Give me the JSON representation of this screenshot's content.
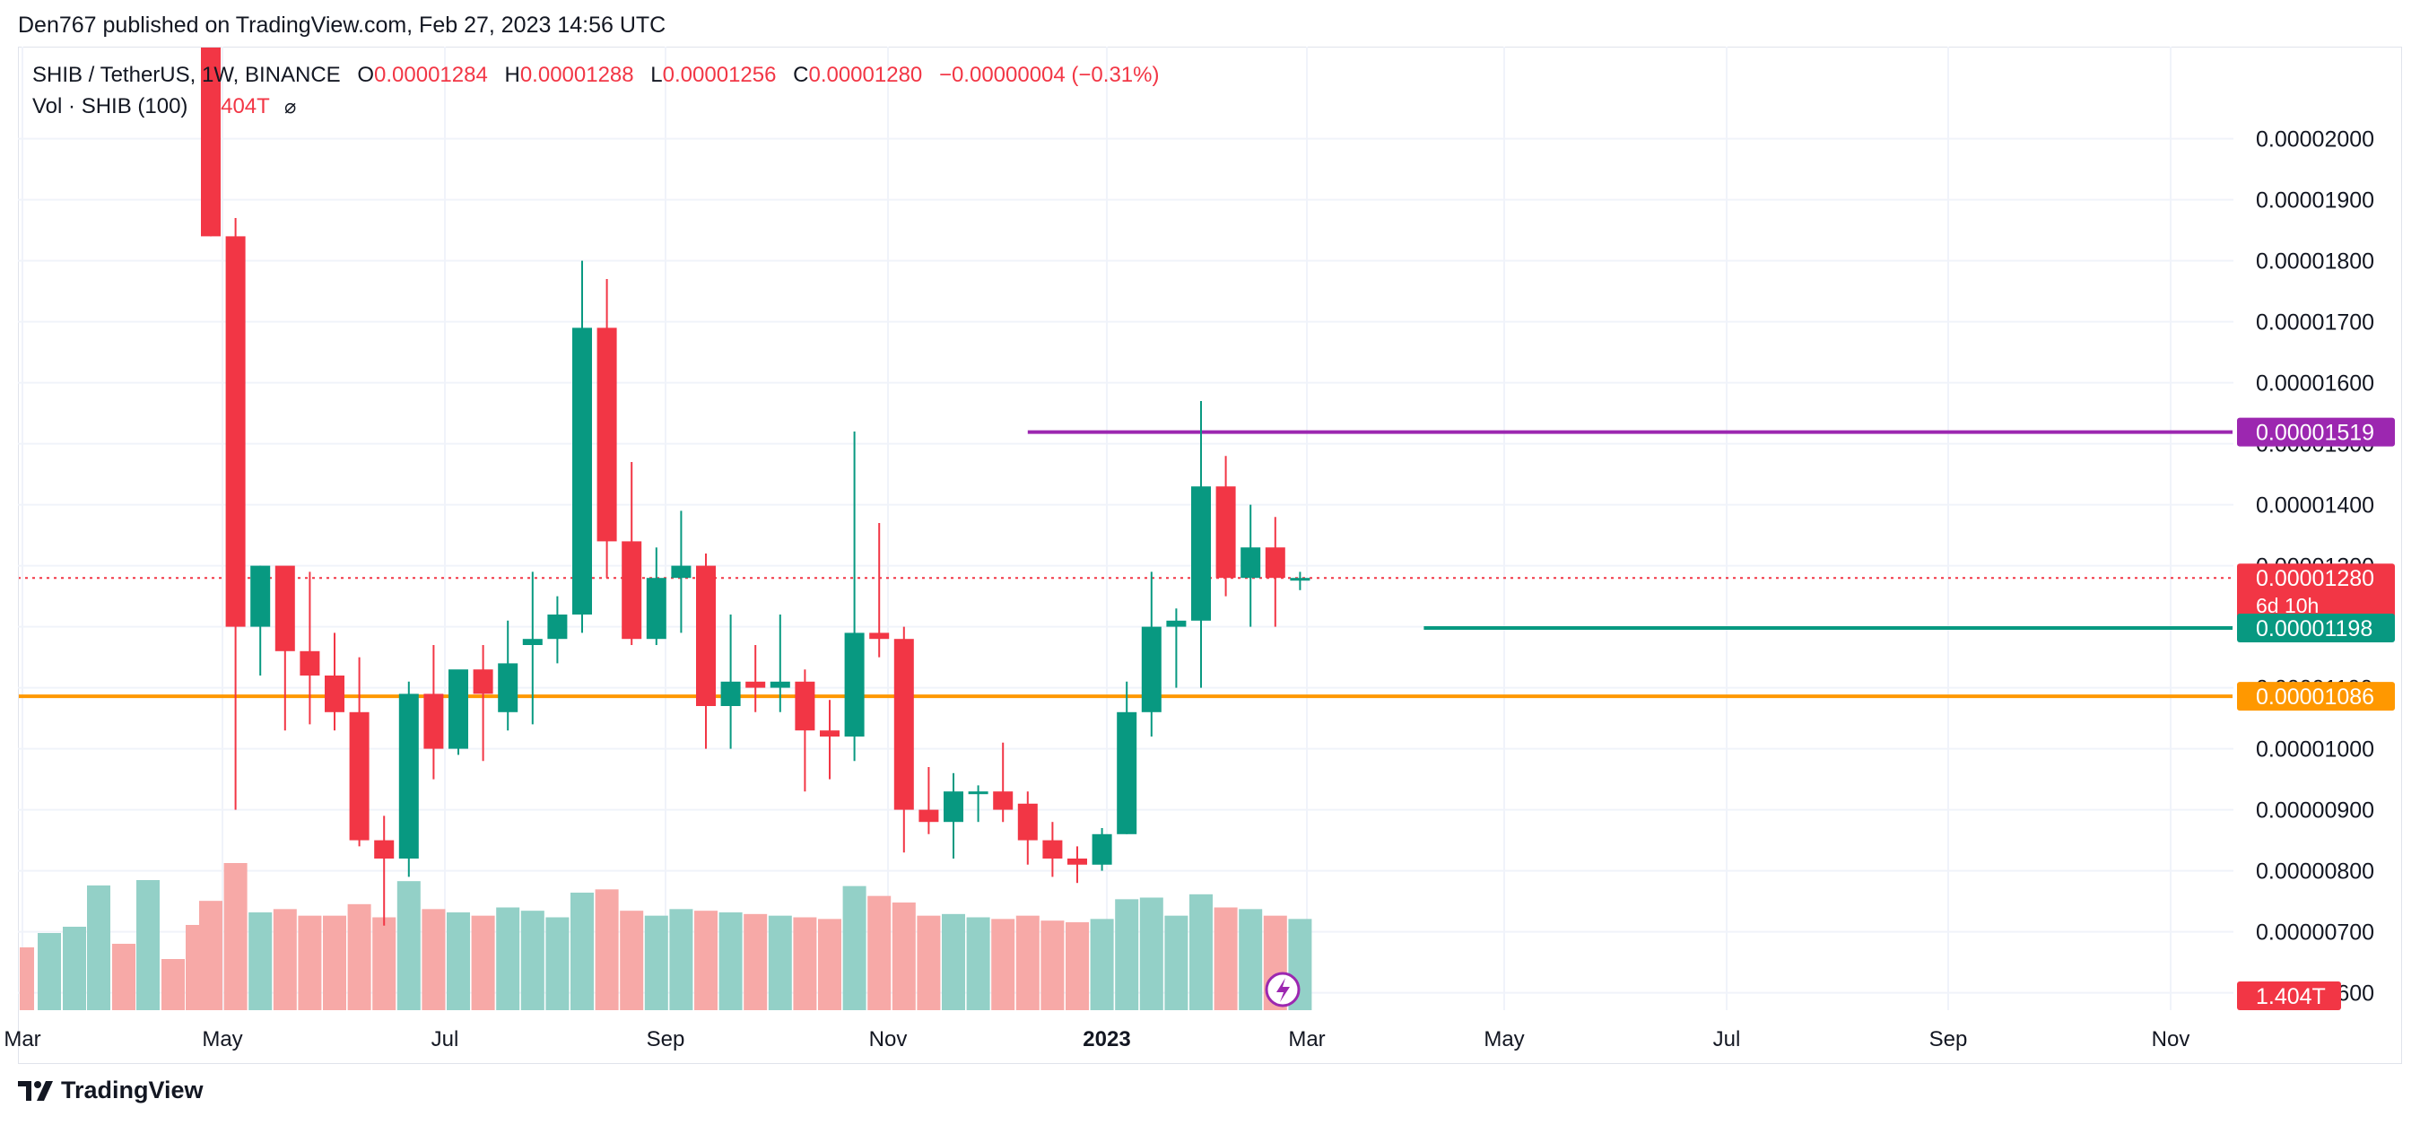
{
  "publisher": "Den767 published on TradingView.com, Feb 27, 2023 14:56 UTC",
  "legend": {
    "symbol": "SHIB / TetherUS, 1W, BINANCE",
    "o_label": "O",
    "o_value": "0.00001284",
    "h_label": "H",
    "h_value": "0.00001288",
    "l_label": "L",
    "l_value": "0.00001256",
    "c_label": "C",
    "c_value": "0.00001280",
    "change": "−0.00000004 (−0.31%)",
    "volume_label": "Vol · SHIB (100)",
    "volume_value": "1.404T",
    "volume_icon": "hidden-eye-icon"
  },
  "footer": {
    "brand": "TradingView",
    "logo": "tradingview-logo-icon"
  },
  "colors": {
    "up": "#089981",
    "down": "#f23645",
    "vol_up": "#93d0c7",
    "vol_down": "#f7a9a7",
    "resistance": "#9c27b0",
    "support": "#089981",
    "level": "#ff9800",
    "grid": "#f0f3fa"
  },
  "chart_data": {
    "type": "candlestick",
    "title": "SHIB / TetherUS, 1W, BINANCE",
    "ylim": [
      5.7e-06,
      2.1e-05
    ],
    "y_ticks": [
      "0.00002000",
      "0.00001900",
      "0.00001800",
      "0.00001700",
      "0.00001600",
      "0.00001500",
      "0.00001400",
      "0.00001300",
      "0.00001200",
      "0.00001100",
      "0.00001000",
      "0.00000900",
      "0.00000800",
      "0.00000700",
      "0.00000600"
    ],
    "x_ticks": [
      "Mar",
      "May",
      "Jul",
      "Sep",
      "Nov",
      "2023",
      "Mar",
      "May",
      "Jul",
      "Sep",
      "Nov"
    ],
    "price_labels": [
      {
        "value": "0.00001519",
        "color": "#9c27b0"
      },
      {
        "value": "0.00001280",
        "sub": "6d 10h",
        "color": "#f23645"
      },
      {
        "value": "0.00001198",
        "color": "#089981"
      },
      {
        "value": "0.00001086",
        "color": "#ff9800"
      }
    ],
    "volume_label": "1.404T",
    "horizontal_lines": [
      {
        "name": "resistance",
        "value": 1.519e-05,
        "start_index": 33
      },
      {
        "name": "support",
        "value": 1.198e-05,
        "start_index": 49
      },
      {
        "name": "level",
        "value": 1.086e-05,
        "start_index": 0
      },
      {
        "name": "current",
        "value": 1.28e-05,
        "start_index": 0
      }
    ],
    "candles": [
      {
        "o": 2.25e-05,
        "h": 2.6e-05,
        "l": 1.84e-05,
        "c": 1.84e-05,
        "v": 0.67
      },
      {
        "o": 1.84e-05,
        "h": 1.87e-05,
        "l": 9e-06,
        "c": 1.2e-05,
        "v": 0.9
      },
      {
        "o": 1.2e-05,
        "h": 1.3e-05,
        "l": 1.12e-05,
        "c": 1.3e-05,
        "v": 0.6
      },
      {
        "o": 1.3e-05,
        "h": 1.29e-05,
        "l": 1.03e-05,
        "c": 1.16e-05,
        "v": 0.62
      },
      {
        "o": 1.16e-05,
        "h": 1.29e-05,
        "l": 1.04e-05,
        "c": 1.12e-05,
        "v": 0.58
      },
      {
        "o": 1.12e-05,
        "h": 1.19e-05,
        "l": 1.03e-05,
        "c": 1.06e-05,
        "v": 0.58
      },
      {
        "o": 1.06e-05,
        "h": 1.15e-05,
        "l": 8.4e-06,
        "c": 8.5e-06,
        "v": 0.65
      },
      {
        "o": 8.5e-06,
        "h": 8.9e-06,
        "l": 7.1e-06,
        "c": 8.2e-06,
        "v": 0.57
      },
      {
        "o": 8.2e-06,
        "h": 1.11e-05,
        "l": 7.9e-06,
        "c": 1.09e-05,
        "v": 0.79
      },
      {
        "o": 1.09e-05,
        "h": 1.17e-05,
        "l": 9.5e-06,
        "c": 1e-05,
        "v": 0.62
      },
      {
        "o": 1e-05,
        "h": 1.12e-05,
        "l": 9.9e-06,
        "c": 1.13e-05,
        "v": 0.6
      },
      {
        "o": 1.13e-05,
        "h": 1.17e-05,
        "l": 9.8e-06,
        "c": 1.09e-05,
        "v": 0.58
      },
      {
        "o": 1.06e-05,
        "h": 1.21e-05,
        "l": 1.03e-05,
        "c": 1.14e-05,
        "v": 0.63
      },
      {
        "o": 1.17e-05,
        "h": 1.29e-05,
        "l": 1.04e-05,
        "c": 1.18e-05,
        "v": 0.61
      },
      {
        "o": 1.18e-05,
        "h": 1.25e-05,
        "l": 1.14e-05,
        "c": 1.22e-05,
        "v": 0.57
      },
      {
        "o": 1.22e-05,
        "h": 1.8e-05,
        "l": 1.19e-05,
        "c": 1.69e-05,
        "v": 0.72
      },
      {
        "o": 1.69e-05,
        "h": 1.77e-05,
        "l": 1.28e-05,
        "c": 1.34e-05,
        "v": 0.74
      },
      {
        "o": 1.34e-05,
        "h": 1.47e-05,
        "l": 1.17e-05,
        "c": 1.18e-05,
        "v": 0.61
      },
      {
        "o": 1.18e-05,
        "h": 1.33e-05,
        "l": 1.17e-05,
        "c": 1.28e-05,
        "v": 0.58
      },
      {
        "o": 1.28e-05,
        "h": 1.39e-05,
        "l": 1.19e-05,
        "c": 1.3e-05,
        "v": 0.62
      },
      {
        "o": 1.3e-05,
        "h": 1.32e-05,
        "l": 1e-05,
        "c": 1.07e-05,
        "v": 0.61
      },
      {
        "o": 1.07e-05,
        "h": 1.22e-05,
        "l": 1e-05,
        "c": 1.11e-05,
        "v": 0.6
      },
      {
        "o": 1.11e-05,
        "h": 1.17e-05,
        "l": 1.06e-05,
        "c": 1.1e-05,
        "v": 0.59
      },
      {
        "o": 1.1e-05,
        "h": 1.22e-05,
        "l": 1.06e-05,
        "c": 1.11e-05,
        "v": 0.58
      },
      {
        "o": 1.11e-05,
        "h": 1.13e-05,
        "l": 9.3e-06,
        "c": 1.03e-05,
        "v": 0.57
      },
      {
        "o": 1.03e-05,
        "h": 1.08e-05,
        "l": 9.5e-06,
        "c": 1.02e-05,
        "v": 0.56
      },
      {
        "o": 1.02e-05,
        "h": 1.52e-05,
        "l": 9.8e-06,
        "c": 1.19e-05,
        "v": 0.76
      },
      {
        "o": 1.19e-05,
        "h": 1.37e-05,
        "l": 1.15e-05,
        "c": 1.18e-05,
        "v": 0.7
      },
      {
        "o": 1.18e-05,
        "h": 1.2e-05,
        "l": 8.3e-06,
        "c": 9e-06,
        "v": 0.66
      },
      {
        "o": 9e-06,
        "h": 9.7e-06,
        "l": 8.6e-06,
        "c": 8.8e-06,
        "v": 0.58
      },
      {
        "o": 8.8e-06,
        "h": 9.6e-06,
        "l": 8.2e-06,
        "c": 9.3e-06,
        "v": 0.59
      },
      {
        "o": 9.3e-06,
        "h": 9.4e-06,
        "l": 8.8e-06,
        "c": 9.3e-06,
        "v": 0.57
      },
      {
        "o": 9.3e-06,
        "h": 1.01e-05,
        "l": 8.8e-06,
        "c": 9e-06,
        "v": 0.56
      },
      {
        "o": 9.1e-06,
        "h": 9.3e-06,
        "l": 8.1e-06,
        "c": 8.5e-06,
        "v": 0.58
      },
      {
        "o": 8.5e-06,
        "h": 8.8e-06,
        "l": 7.9e-06,
        "c": 8.2e-06,
        "v": 0.55
      },
      {
        "o": 8.2e-06,
        "h": 8.4e-06,
        "l": 7.8e-06,
        "c": 8.1e-06,
        "v": 0.54
      },
      {
        "o": 8.1e-06,
        "h": 8.7e-06,
        "l": 8e-06,
        "c": 8.6e-06,
        "v": 0.56
      },
      {
        "o": 8.6e-06,
        "h": 1.11e-05,
        "l": 8.6e-06,
        "c": 1.06e-05,
        "v": 0.68
      },
      {
        "o": 1.06e-05,
        "h": 1.29e-05,
        "l": 1.02e-05,
        "c": 1.2e-05,
        "v": 0.69
      },
      {
        "o": 1.2e-05,
        "h": 1.23e-05,
        "l": 1.1e-05,
        "c": 1.21e-05,
        "v": 0.58
      },
      {
        "o": 1.21e-05,
        "h": 1.57e-05,
        "l": 1.1e-05,
        "c": 1.43e-05,
        "v": 0.71
      },
      {
        "o": 1.43e-05,
        "h": 1.48e-05,
        "l": 1.25e-05,
        "c": 1.28e-05,
        "v": 0.63
      },
      {
        "o": 1.28e-05,
        "h": 1.4e-05,
        "l": 1.2e-05,
        "c": 1.33e-05,
        "v": 0.62
      },
      {
        "o": 1.33e-05,
        "h": 1.38e-05,
        "l": 1.2e-05,
        "c": 1.28e-05,
        "v": 0.58
      },
      {
        "o": 1.28e-05,
        "h": 1.29e-05,
        "l": 1.26e-05,
        "c": 1.28e-05,
        "v": 0.56
      }
    ]
  }
}
